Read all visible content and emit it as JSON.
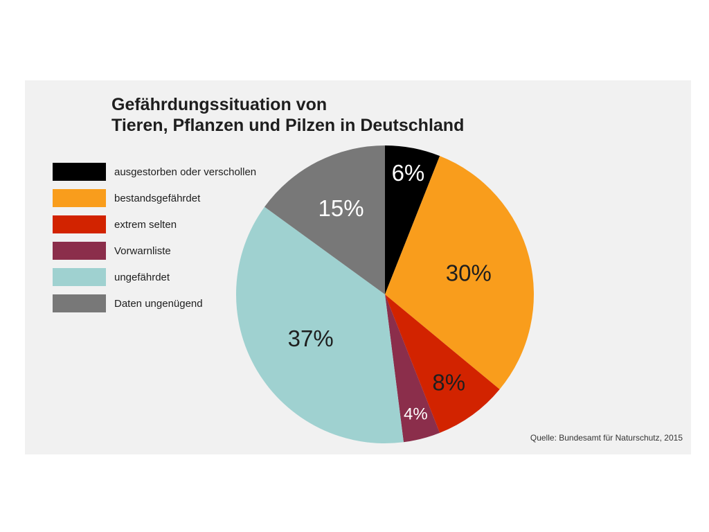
{
  "chart_data": {
    "type": "pie",
    "title_lines": [
      "Gefährdungssituation von",
      "Tieren, Pflanzen und Pilzen in Deutschland"
    ],
    "source": "Quelle: Bundesamt für Naturschutz, 2015",
    "legend_position": "left",
    "slices": [
      {
        "label": "ausgestorben oder verschollen",
        "value": 6,
        "display": "6%",
        "color": "#000000",
        "text_color": "#ffffff"
      },
      {
        "label": "bestandsgefährdet",
        "value": 30,
        "display": "30%",
        "color": "#f99d1c",
        "text_color": "#1e1e1e"
      },
      {
        "label": "extrem selten",
        "value": 8,
        "display": "8%",
        "color": "#d22300",
        "text_color": "#1e1e1e"
      },
      {
        "label": "Vorwarnliste",
        "value": 4,
        "display": "4%",
        "color": "#8b2e4b",
        "text_color": "#ffffff"
      },
      {
        "label": "ungefährdet",
        "value": 37,
        "display": "37%",
        "color": "#9fd1d0",
        "text_color": "#1e1e1e"
      },
      {
        "label": "Daten ungenügend",
        "value": 15,
        "display": "15%",
        "color": "#787878",
        "text_color": "#ffffff"
      }
    ]
  }
}
